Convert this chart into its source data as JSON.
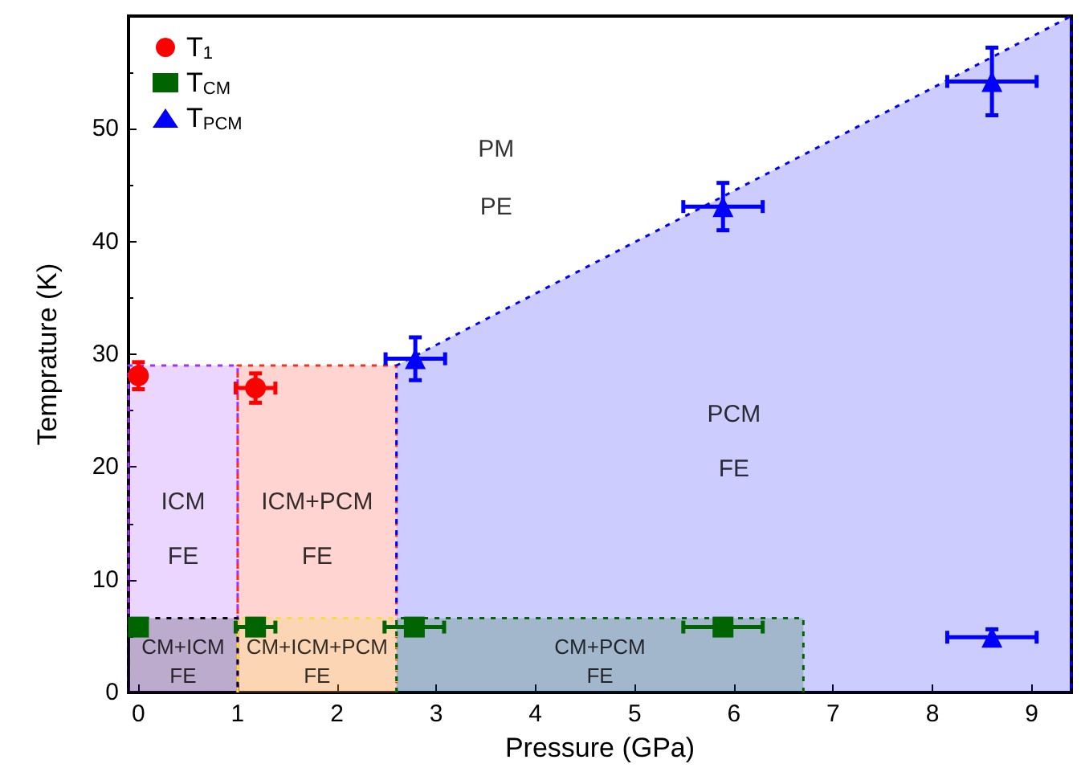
{
  "chart_data": {
    "type": "scatter",
    "xlabel": "Pressure (GPa)",
    "ylabel": "Temprature (K)",
    "xlim": [
      -0.1,
      9.4
    ],
    "ylim": [
      0,
      60
    ],
    "xticks": [
      0,
      1,
      2,
      3,
      4,
      5,
      6,
      7,
      8,
      9
    ],
    "yticks": [
      0,
      10,
      20,
      30,
      40,
      50
    ],
    "grid": false,
    "legend": "top left",
    "line_style": "dashed",
    "series": [
      {
        "type": "area",
        "name": "ICM\nFE",
        "color": "#9b30ff",
        "x": [
          -0.1,
          -0.1,
          1,
          1
        ],
        "values": [
          0,
          29,
          29,
          0
        ]
      },
      {
        "type": "area",
        "name": "ICM+PCM\nFE",
        "color": "#ff2a1a",
        "x": [
          1,
          1,
          2.6,
          2.6
        ],
        "values": [
          0,
          29,
          29,
          0
        ]
      },
      {
        "type": "area",
        "name": "PCM\nFE",
        "color": "#0000ff",
        "x": [
          2.6,
          2.6,
          9.4,
          9.4
        ],
        "values": [
          0,
          29,
          60,
          0
        ]
      },
      {
        "type": "area",
        "name": "CM+ICM\nFE",
        "color": "#000000",
        "x": [
          -0.1,
          -0.1,
          1,
          1
        ],
        "values": [
          0,
          6.6,
          6.6,
          0
        ]
      },
      {
        "type": "area",
        "name": "CM+ICM+PCM\nFE",
        "color": "#f0e040",
        "x": [
          1,
          1,
          2.6,
          2.6
        ],
        "values": [
          0,
          6.6,
          6.6,
          0
        ]
      },
      {
        "type": "area",
        "name": "CM+PCM\nFE",
        "color": "#006400",
        "x": [
          2.6,
          2.6,
          6.7,
          6.7
        ],
        "values": [
          0,
          6.6,
          6.6,
          0
        ]
      },
      {
        "name": "T$_{1}$",
        "color": "#ff0000",
        "marker": "circle",
        "x": [
          0,
          1.18
        ],
        "values": [
          28.1,
          27
        ],
        "errors": [
          1.2,
          1.3
        ],
        "xerrors": [
          null,
          0.2
        ]
      },
      {
        "name": "T$_{CM}$",
        "color": "#006400",
        "marker": "square",
        "x": [
          0,
          1.18,
          2.78,
          5.89
        ],
        "values": [
          5.8,
          5.8,
          5.8,
          5.8
        ],
        "errors": [
          null,
          null,
          null,
          null
        ],
        "xerrors": [
          null,
          0.2,
          0.3,
          0.4
        ]
      },
      {
        "name": "T$_{PCM}$",
        "color": "#0000ff",
        "marker": "triangle",
        "x": [
          2.79,
          5.89,
          8.6,
          8.6
        ],
        "values": [
          29.6,
          43.1,
          54.2,
          4.9
        ],
        "errors": [
          1.9,
          2.1,
          3,
          0.7
        ],
        "xerrors": [
          0.3,
          0.4,
          0.45,
          0.45
        ]
      }
    ],
    "annotations": [
      "PM\nPE"
    ]
  }
}
